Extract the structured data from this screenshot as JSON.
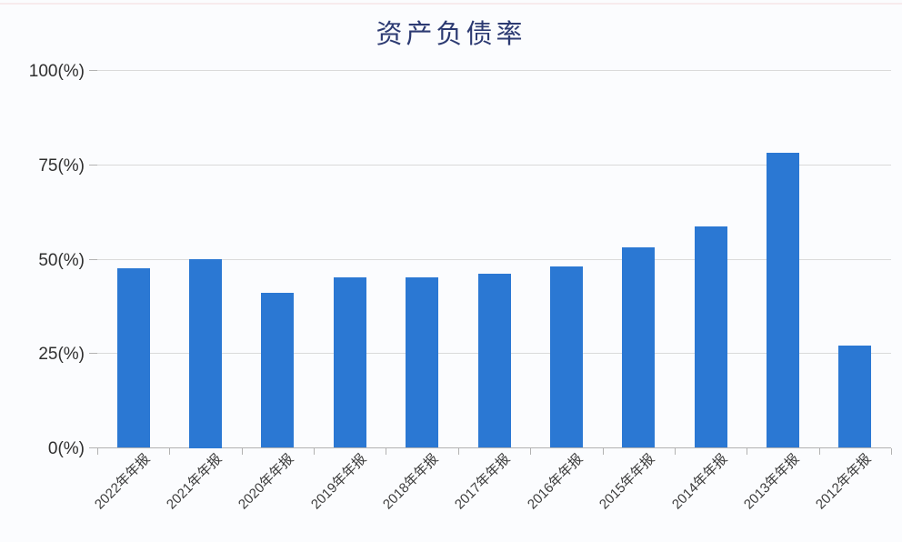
{
  "page": {
    "background_color": "#fbfcfe",
    "top_accent_line_color": "#f4dcdf"
  },
  "chart_data": {
    "type": "bar",
    "title": "资产负债率",
    "categories": [
      "2022年年报",
      "2021年年报",
      "2020年年报",
      "2019年年报",
      "2018年年报",
      "2017年年报",
      "2016年年报",
      "2015年年报",
      "2014年年报",
      "2013年年报",
      "2012年年报"
    ],
    "values": [
      47.5,
      50,
      41,
      45,
      45,
      46,
      48,
      53,
      58.5,
      78,
      27
    ],
    "series_name": "资产负债率",
    "xlabel": "",
    "ylabel": "",
    "unit": "%",
    "ylim": [
      0,
      100
    ],
    "yticks": [
      0,
      25,
      50,
      75,
      100
    ],
    "ytick_labels": [
      "0(%)",
      "25(%)",
      "50(%)",
      "75(%)",
      "100(%)"
    ],
    "grid": true,
    "legend_position": "none",
    "bar_color": "#2b78d3",
    "title_color": "#2c3a72",
    "axis_line_color": "#b2b2b2",
    "grid_line_color": "#dadada",
    "ytick_label_color": "#2f2f2f",
    "xtick_label_color": "#3c3c3c"
  }
}
